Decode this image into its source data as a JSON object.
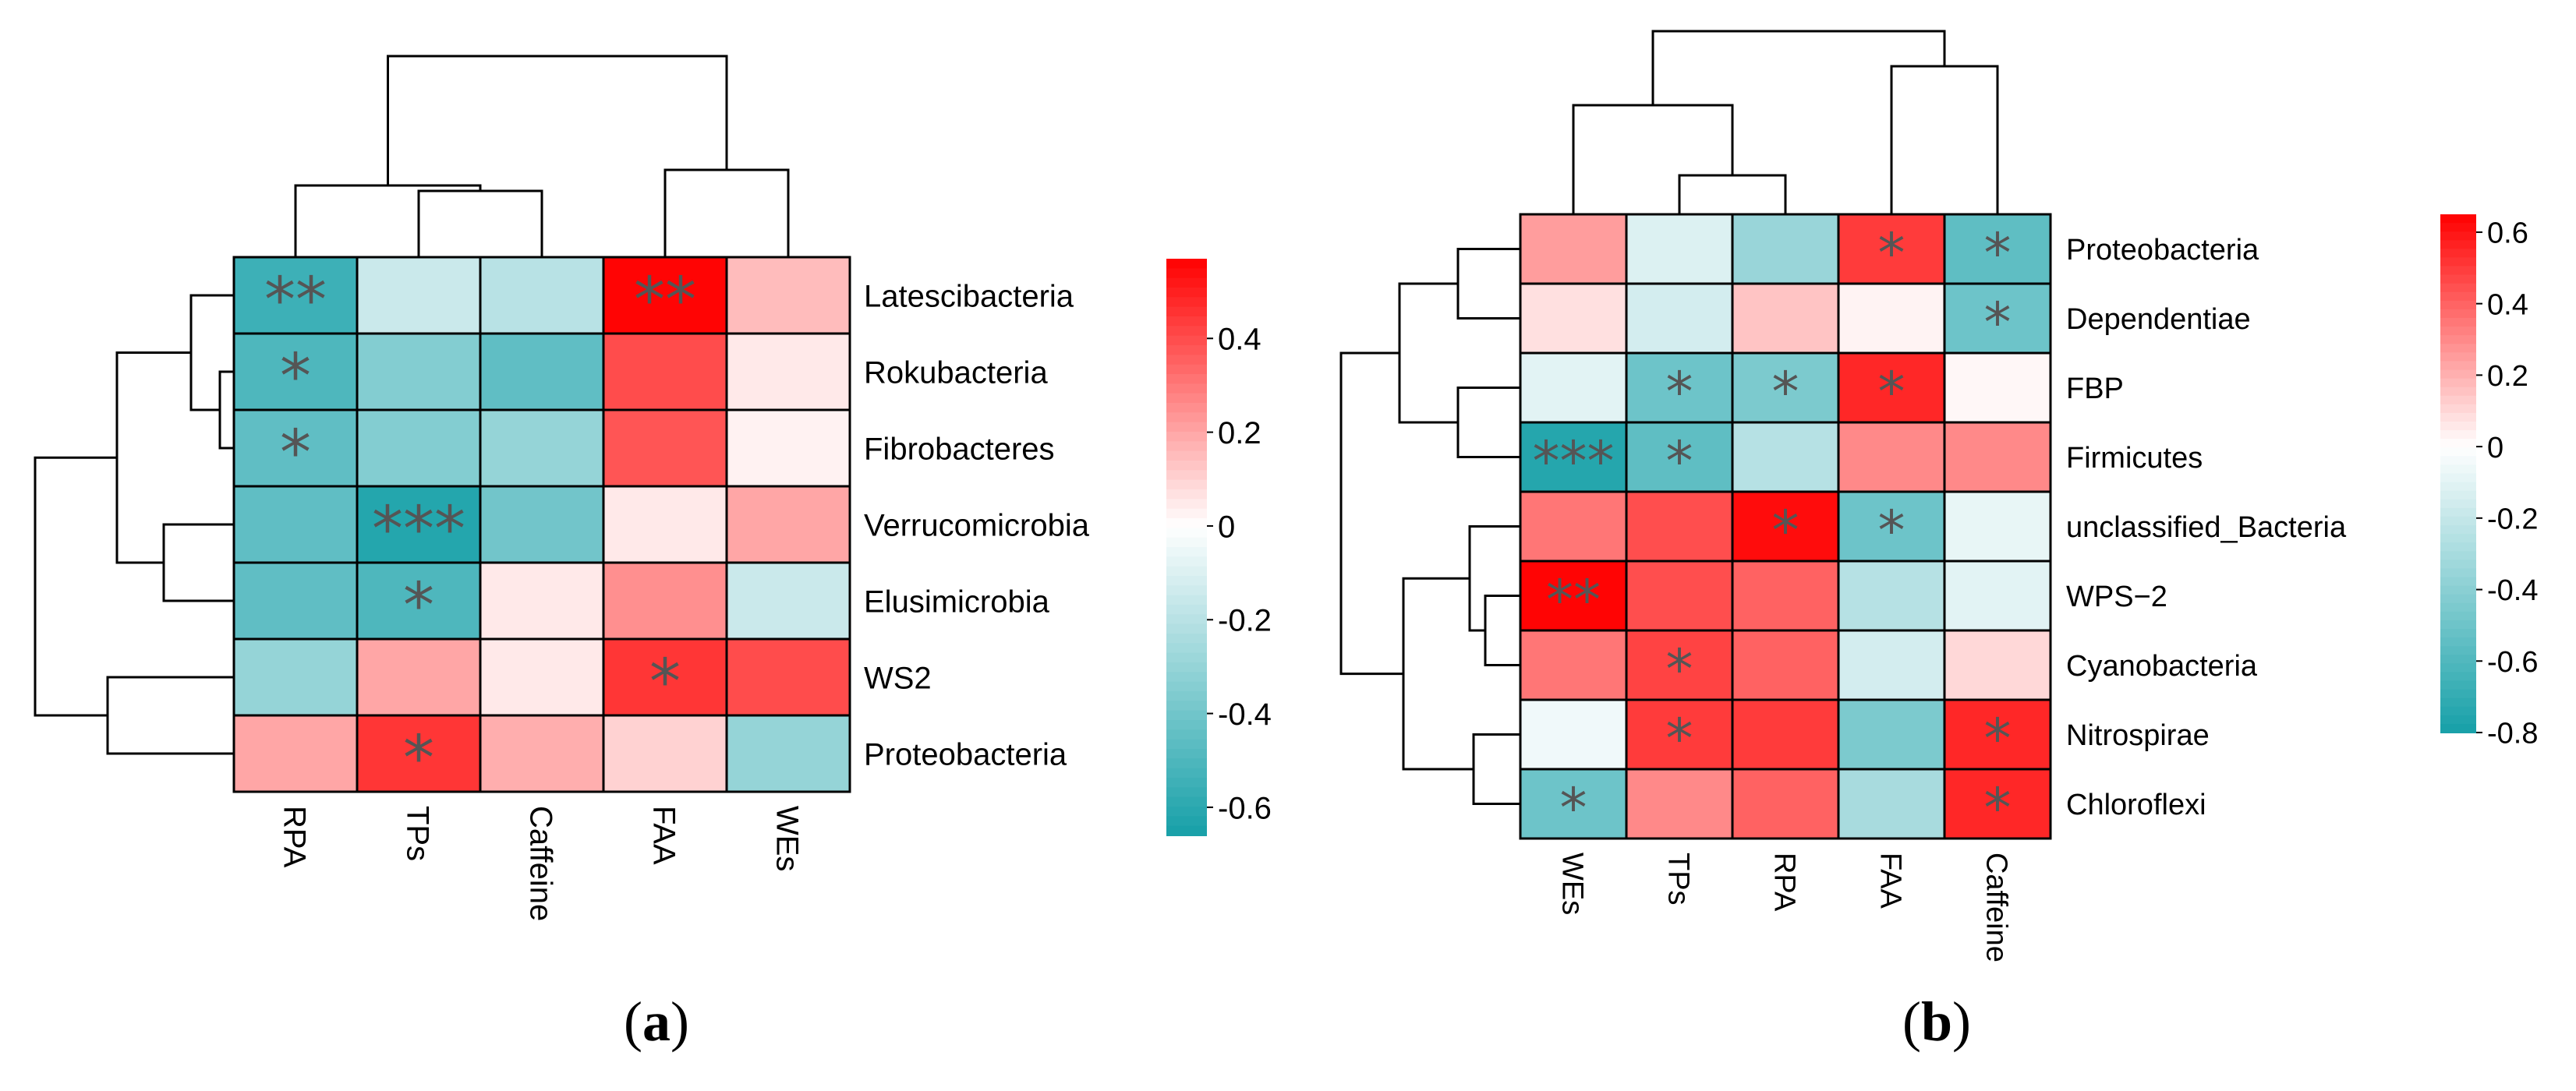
{
  "colors": {
    "low": "#16a0a8",
    "mid": "#ffffff",
    "high": "#ff0000",
    "star": "#555555",
    "line": "#000000"
  },
  "panel_labels": [
    {
      "open": "(",
      "letter": "a",
      "close": ")"
    },
    {
      "open": "(",
      "letter": "b",
      "close": ")"
    }
  ],
  "chart_data": [
    {
      "type": "heatmap",
      "id": "a",
      "title": "",
      "columns": [
        "RPA",
        "TPs",
        "Caffeine",
        "FAA",
        "WEs"
      ],
      "rows": [
        "Latescibacteria",
        "Rokubacteria",
        "Fibrobacteres",
        "Verrucomicrobia",
        "Elusimicrobia",
        "WS2",
        "Proteobacteria"
      ],
      "values": [
        [
          -0.55,
          -0.15,
          -0.2,
          0.56,
          0.15
        ],
        [
          -0.5,
          -0.35,
          -0.45,
          0.4,
          0.05
        ],
        [
          -0.45,
          -0.35,
          -0.3,
          0.38,
          0.03
        ],
        [
          -0.45,
          -0.62,
          -0.4,
          0.05,
          0.2
        ],
        [
          -0.45,
          -0.5,
          0.05,
          0.25,
          -0.15
        ],
        [
          -0.3,
          0.2,
          0.05,
          0.45,
          0.4
        ],
        [
          0.2,
          0.45,
          0.18,
          0.1,
          -0.3
        ]
      ],
      "significance": [
        [
          "**",
          "",
          "",
          "**",
          ""
        ],
        [
          "*",
          "",
          "",
          "",
          ""
        ],
        [
          "*",
          "",
          "",
          "",
          ""
        ],
        [
          "",
          "***",
          "",
          "",
          ""
        ],
        [
          "",
          "*",
          "",
          "",
          ""
        ],
        [
          "",
          "",
          "",
          "*",
          ""
        ],
        [
          "",
          "*",
          "",
          "",
          ""
        ]
      ],
      "colorbar": {
        "min": -0.66,
        "max": 0.57,
        "ticks": [
          0.4,
          0.2,
          0,
          -0.2,
          -0.4,
          -0.6
        ],
        "tick_labels": [
          "0.4",
          "0.2",
          "0",
          "-0.2",
          "-0.4",
          "-0.6"
        ]
      },
      "dendrograms": {
        "columns": "top",
        "rows": "left"
      }
    },
    {
      "type": "heatmap",
      "id": "b",
      "title": "",
      "columns": [
        "WEs",
        "TPs",
        "RPA",
        "FAA",
        "Caffeine"
      ],
      "rows": [
        "Proteobacteria",
        "Dependentiae",
        "FBP",
        "Firmicutes",
        "unclassified_Bacteria",
        "WPS−2",
        "Cyanobacteria",
        "Nitrospirae",
        "Chloroflexi"
      ],
      "values": [
        [
          0.25,
          -0.12,
          -0.35,
          0.5,
          -0.55
        ],
        [
          0.08,
          -0.15,
          0.15,
          0.03,
          -0.5
        ],
        [
          -0.1,
          -0.5,
          -0.45,
          0.55,
          0.02
        ],
        [
          -0.75,
          -0.55,
          -0.25,
          0.3,
          0.3
        ],
        [
          0.35,
          0.45,
          0.62,
          -0.5,
          -0.08
        ],
        [
          0.64,
          0.45,
          0.4,
          -0.25,
          -0.1
        ],
        [
          0.35,
          0.48,
          0.4,
          -0.15,
          0.1
        ],
        [
          -0.05,
          0.5,
          0.5,
          -0.45,
          0.55
        ],
        [
          -0.5,
          0.3,
          0.4,
          -0.3,
          0.55
        ]
      ],
      "significance": [
        [
          "",
          "",
          "",
          "*",
          "*"
        ],
        [
          "",
          "",
          "",
          "",
          "*"
        ],
        [
          "",
          "*",
          "*",
          "*",
          ""
        ],
        [
          "***",
          "*",
          "",
          "",
          ""
        ],
        [
          "",
          "",
          "*",
          "*",
          ""
        ],
        [
          "**",
          "",
          "",
          "",
          ""
        ],
        [
          "",
          "*",
          "",
          "",
          ""
        ],
        [
          "",
          "*",
          "",
          "",
          "*"
        ],
        [
          "*",
          "",
          "",
          "",
          "*"
        ]
      ],
      "colorbar": {
        "min": -0.8,
        "max": 0.65,
        "ticks": [
          0.6,
          0.4,
          0.2,
          0,
          -0.2,
          -0.4,
          -0.6,
          -0.8
        ],
        "tick_labels": [
          "0.6",
          "0.4",
          "0.2",
          "0",
          "-0.2",
          "-0.4",
          "-0.6",
          "-0.8"
        ]
      },
      "dendrograms": {
        "columns": "top",
        "rows": "left"
      }
    }
  ]
}
